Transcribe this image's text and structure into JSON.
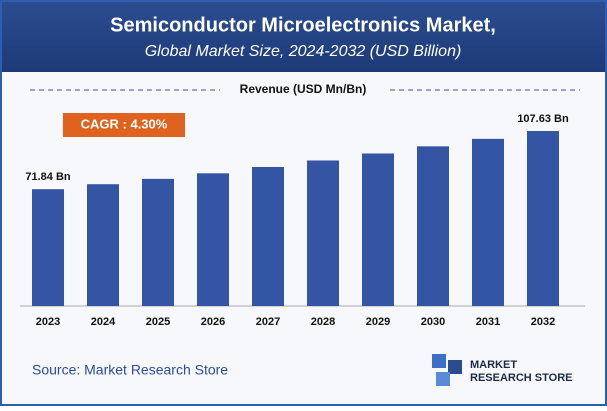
{
  "chart_data": {
    "type": "bar",
    "title": "Semiconductor Microelectronics Market,",
    "subtitle": "Global Market Size, 2024-2032 (USD Billion)",
    "legend_label": "Revenue (USD Mn/Bn)",
    "annotation": "CAGR : 4.30%",
    "source": "Source: Market Research Store",
    "logo": [
      "MARKET",
      "RESEARCH STORE"
    ],
    "categories": [
      "2023",
      "2024",
      "2025",
      "2026",
      "2027",
      "2028",
      "2029",
      "2030",
      "2031",
      "2032"
    ],
    "values": [
      71.84,
      74.9,
      78.2,
      81.6,
      85.5,
      89.5,
      93.8,
      98.2,
      102.8,
      107.63
    ],
    "value_labels": [
      "71.84 Bn",
      null,
      null,
      null,
      null,
      null,
      null,
      null,
      null,
      "107.63 Bn"
    ],
    "color": "#3455a4"
  }
}
